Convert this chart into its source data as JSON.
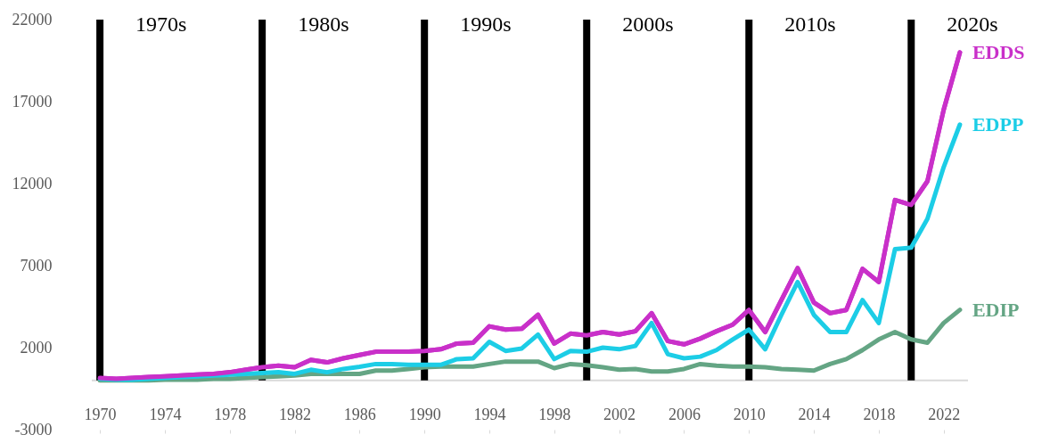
{
  "chart_data": {
    "type": "line",
    "x": [
      1970,
      1971,
      1972,
      1973,
      1974,
      1975,
      1976,
      1977,
      1978,
      1979,
      1980,
      1981,
      1982,
      1983,
      1984,
      1985,
      1986,
      1987,
      1988,
      1989,
      1990,
      1991,
      1992,
      1993,
      1994,
      1995,
      1996,
      1997,
      1998,
      1999,
      2000,
      2001,
      2002,
      2003,
      2004,
      2005,
      2006,
      2007,
      2008,
      2009,
      2010,
      2011,
      2012,
      2013,
      2014,
      2015,
      2016,
      2017,
      2018,
      2019,
      2020,
      2021,
      2022,
      2023
    ],
    "series": [
      {
        "name": "EDDS",
        "color": "#c930c9",
        "values": [
          150,
          100,
          150,
          200,
          250,
          300,
          350,
          400,
          500,
          650,
          800,
          900,
          800,
          1250,
          1100,
          1350,
          1550,
          1750,
          1750,
          1750,
          1800,
          1900,
          2250,
          2300,
          3300,
          3100,
          3150,
          4000,
          2250,
          2850,
          2750,
          2950,
          2800,
          3000,
          4100,
          2400,
          2200,
          2550,
          3000,
          3400,
          4300,
          2950,
          4900,
          6850,
          4750,
          4100,
          4300,
          6800,
          6000,
          11000,
          10700,
          12150,
          16500,
          20000
        ]
      },
      {
        "name": "EDIP",
        "color": "#64a584",
        "values": [
          0,
          0,
          0,
          0,
          50,
          50,
          50,
          100,
          100,
          150,
          200,
          250,
          300,
          400,
          400,
          400,
          400,
          600,
          600,
          700,
          800,
          850,
          850,
          850,
          1000,
          1150,
          1150,
          1150,
          750,
          1000,
          930,
          800,
          650,
          700,
          550,
          550,
          700,
          1000,
          900,
          850,
          850,
          800,
          700,
          650,
          600,
          1000,
          1300,
          1850,
          2500,
          2950,
          2500,
          2300,
          3500,
          4300
        ]
      },
      {
        "name": "EDPP",
        "color": "#1ccde6",
        "values": [
          100,
          50,
          50,
          100,
          150,
          200,
          250,
          300,
          350,
          400,
          450,
          500,
          400,
          650,
          500,
          700,
          830,
          1000,
          1000,
          950,
          950,
          950,
          1300,
          1350,
          2350,
          1800,
          1950,
          2800,
          1300,
          1800,
          1750,
          2000,
          1900,
          2100,
          3500,
          1600,
          1350,
          1450,
          1850,
          2500,
          3100,
          1900,
          4000,
          6000,
          4000,
          2950,
          2950,
          4900,
          3500,
          8000,
          8100,
          9850,
          13000,
          15600
        ]
      }
    ],
    "xlim": [
      1969.5,
      2023.5
    ],
    "xticks": [
      1970,
      1974,
      1978,
      1982,
      1986,
      1990,
      1994,
      1998,
      2002,
      2006,
      2010,
      2014,
      2018,
      2022
    ],
    "ylim": [
      -3000,
      22000
    ],
    "yticks": [
      -3000,
      2000,
      7000,
      12000,
      17000,
      22000
    ],
    "ref_lines": [
      {
        "axis": "x",
        "value": 1970,
        "label": "1970s",
        "color": "#000000"
      },
      {
        "axis": "x",
        "value": 1980,
        "label": "1980s",
        "color": "#000000"
      },
      {
        "axis": "x",
        "value": 1990,
        "label": "1990s",
        "color": "#000000"
      },
      {
        "axis": "x",
        "value": 2000,
        "label": "2000s",
        "color": "#000000"
      },
      {
        "axis": "x",
        "value": 2010,
        "label": "2010s",
        "color": "#000000"
      },
      {
        "axis": "x",
        "value": 2020,
        "label": "2020s",
        "color": "#000000"
      }
    ],
    "grid": false,
    "marker": "none",
    "line_style": "solid"
  }
}
